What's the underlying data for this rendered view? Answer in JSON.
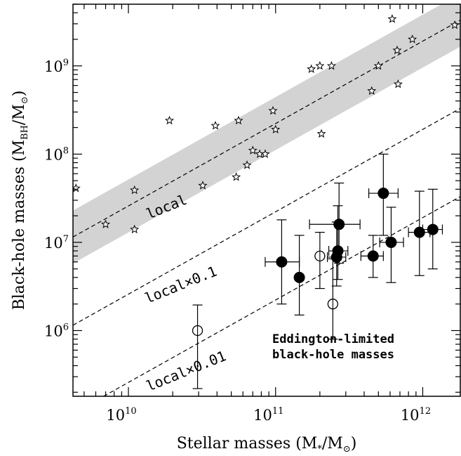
{
  "chart_data": {
    "type": "scatter",
    "xlabel": {
      "main": "Stellar masses (M",
      "sub": "*",
      "mid": "/M",
      "sym": "⊙",
      "end": ")"
    },
    "ylabel": {
      "main": "Black-hole masses (M",
      "sub": "BH",
      "mid": "/M",
      "sym": "⊙",
      "end": ")"
    },
    "x_scale": "log",
    "y_scale": "log",
    "xlim": [
      4200000000.0,
      1800000000000.0
    ],
    "ylim": [
      180000.0,
      5000000000.0
    ],
    "x_ticks": [
      {
        "value": 10000000000.0,
        "base": "10",
        "exp": "10"
      },
      {
        "value": 100000000000.0,
        "base": "10",
        "exp": "11"
      },
      {
        "value": 1000000000000.0,
        "base": "10",
        "exp": "12"
      }
    ],
    "y_ticks": [
      {
        "value": 1000000.0,
        "base": "10",
        "exp": "6"
      },
      {
        "value": 10000000.0,
        "base": "10",
        "exp": "7"
      },
      {
        "value": 100000000.0,
        "base": "10",
        "exp": "8"
      },
      {
        "value": 1000000000.0,
        "base": "10",
        "exp": "9"
      }
    ],
    "local_relation": {
      "label": "local",
      "band_dex": 0.3,
      "points": [
        [
          4200000000.0,
          11500000.0
        ],
        [
          1800000000000.0,
          3300000000.0
        ]
      ]
    },
    "scaled_relations": [
      {
        "label": "local×0.1",
        "factor": 0.1
      },
      {
        "label": "local×0.01",
        "factor": 0.01
      }
    ],
    "series": [
      {
        "name": "",
        "marker": "open-star",
        "points": [
          [
            4400000000.0,
            41000000.0
          ],
          [
            7000000000.0,
            16000000.0
          ],
          [
            11000000000.0,
            39000000.0
          ],
          [
            11000000000.0,
            14000000.0
          ],
          [
            19000000000.0,
            240000000.0
          ],
          [
            32000000000.0,
            44000000.0
          ],
          [
            39000000000.0,
            210000000.0
          ],
          [
            54000000000.0,
            55000000.0
          ],
          [
            56000000000.0,
            240000000.0
          ],
          [
            64000000000.0,
            75000000.0
          ],
          [
            70000000000.0,
            110000000.0
          ],
          [
            78000000000.0,
            100000000.0
          ],
          [
            85000000000.0,
            100000000.0
          ],
          [
            96000000000.0,
            310000000.0
          ],
          [
            100000000000.0,
            190000000.0
          ],
          [
            175000000000.0,
            920000000.0
          ],
          [
            200000000000.0,
            1000000000.0
          ],
          [
            205000000000.0,
            170000000.0
          ],
          [
            240000000000.0,
            1000000000.0
          ],
          [
            450000000000.0,
            520000000.0
          ],
          [
            500000000000.0,
            1000000000.0
          ],
          [
            620000000000.0,
            3400000000.0
          ],
          [
            670000000000.0,
            1500000000.0
          ],
          [
            680000000000.0,
            620000000.0
          ],
          [
            850000000000.0,
            2000000000.0
          ],
          [
            1650000000000.0,
            2900000000.0
          ]
        ]
      },
      {
        "name": "",
        "marker": "filled-circle",
        "points": [
          {
            "x": 110000000000.0,
            "y": 6000000.0,
            "xerr": [
              85000000000.0,
              145000000000.0
            ],
            "yerr": [
              2000000.0,
              18000000.0
            ]
          },
          {
            "x": 145000000000.0,
            "y": 4000000.0,
            "xerr": null,
            "yerr": [
              1500000.0,
              12000000.0
            ]
          },
          {
            "x": 260000000000.0,
            "y": 6800000.0,
            "xerr": [
              225000000000.0,
              300000000000.0
            ],
            "yerr": [
              3200000.0,
              17000000.0
            ]
          },
          {
            "x": 265000000000.0,
            "y": 8000000.0,
            "xerr": [
              230000000000.0,
              310000000000.0
            ],
            "yerr": [
              3800000.0,
              26000000.0
            ]
          },
          {
            "x": 270000000000.0,
            "y": 16000000.0,
            "xerr": [
              170000000000.0,
              375000000000.0
            ],
            "yerr": [
              5800000.0,
              47000000.0
            ]
          },
          {
            "x": 460000000000.0,
            "y": 7000000.0,
            "xerr": [
              380000000000.0,
              540000000000.0
            ],
            "yerr": [
              4000000.0,
              12000000.0
            ]
          },
          {
            "x": 540000000000.0,
            "y": 36000000.0,
            "xerr": [
              430000000000.0,
              680000000000.0
            ],
            "yerr": [
              12000000.0,
              100000000.0
            ]
          },
          {
            "x": 610000000000.0,
            "y": 10000000.0,
            "xerr": [
              510000000000.0,
              740000000000.0
            ],
            "yerr": [
              3500000.0,
              25000000.0
            ]
          },
          {
            "x": 950000000000.0,
            "y": 13000000.0,
            "xerr": [
              800000000000.0,
              1120000000000.0
            ],
            "yerr": [
              4200000.0,
              38000000.0
            ]
          },
          {
            "x": 1170000000000.0,
            "y": 14000000.0,
            "xerr": [
              1000000000000.0,
              1360000000000.0
            ],
            "yerr": [
              5000000.0,
              40000000.0
            ]
          }
        ]
      },
      {
        "name": "",
        "marker": "open-circle-crossed",
        "points": [
          {
            "x": 29500000000.0,
            "y": 1000000.0,
            "yerr": [
              220000.0,
              1950000.0
            ]
          },
          {
            "x": 200000000000.0,
            "y": 7000000.0,
            "yerr": [
              3000000.0,
              13000000.0
            ]
          },
          {
            "x": 245000000000.0,
            "y": 2000000.0,
            "yerr": [
              800000.0,
              6500000.0
            ]
          }
        ]
      }
    ],
    "annotations": [
      {
        "text": "Eddington-limited",
        "position": "lower-right"
      },
      {
        "text": "black-hole masses",
        "position": "lower-right"
      }
    ],
    "grid": false,
    "legend": "none"
  }
}
